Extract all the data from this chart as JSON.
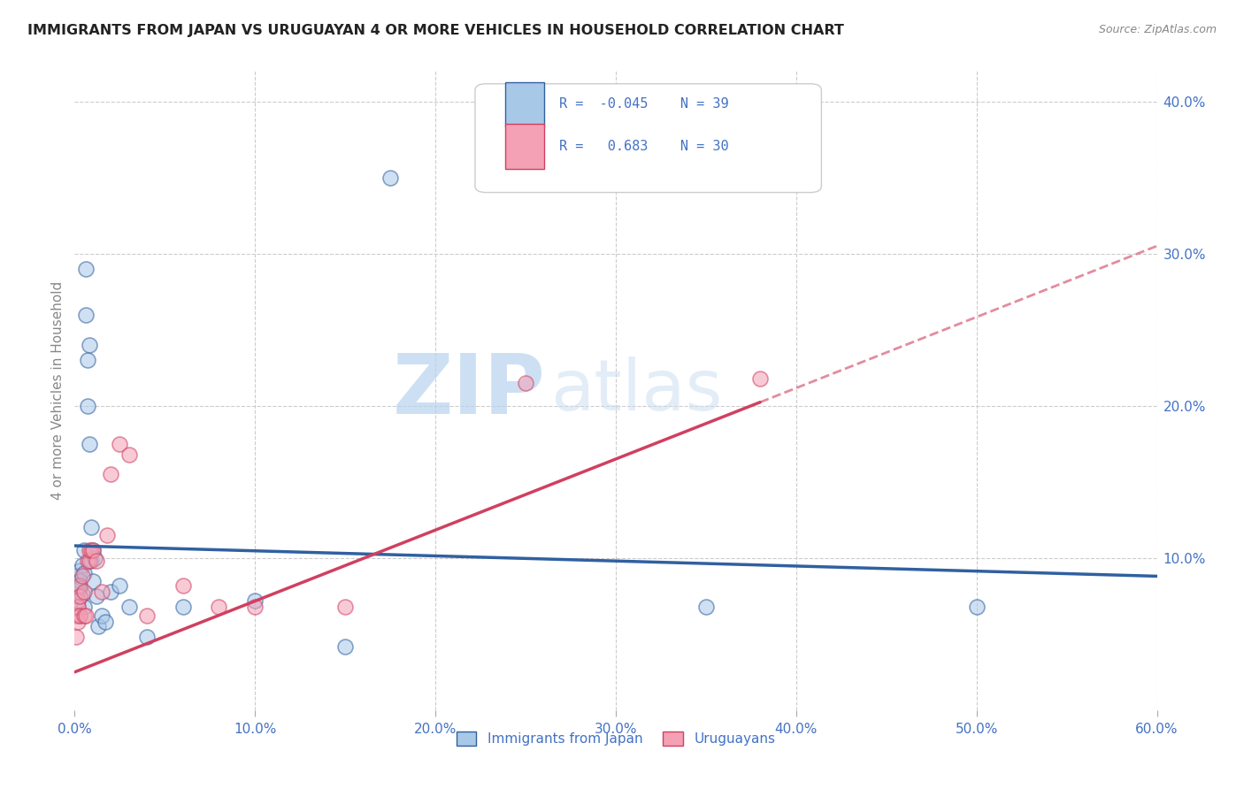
{
  "title": "IMMIGRANTS FROM JAPAN VS URUGUAYAN 4 OR MORE VEHICLES IN HOUSEHOLD CORRELATION CHART",
  "source": "Source: ZipAtlas.com",
  "ylabel": "4 or more Vehicles in Household",
  "xlim": [
    0.0,
    0.6
  ],
  "ylim": [
    0.0,
    0.42
  ],
  "xticks": [
    0.0,
    0.1,
    0.2,
    0.3,
    0.4,
    0.5,
    0.6
  ],
  "yticks": [
    0.1,
    0.2,
    0.3,
    0.4
  ],
  "xtick_labels": [
    "0.0%",
    "10.0%",
    "20.0%",
    "30.0%",
    "40.0%",
    "50.0%",
    "60.0%"
  ],
  "ytick_labels": [
    "10.0%",
    "20.0%",
    "30.0%",
    "40.0%"
  ],
  "legend_label1": "Immigrants from Japan",
  "legend_label2": "Uruguayans",
  "R1": -0.045,
  "N1": 39,
  "R2": 0.683,
  "N2": 30,
  "color_blue": "#a8c8e8",
  "color_pink": "#f4a0b5",
  "color_blue_line": "#3060a0",
  "color_pink_line": "#d04060",
  "color_text": "#4472c4",
  "watermark_zip": "ZIP",
  "watermark_atlas": "atlas",
  "japan_line_x0": 0.0,
  "japan_line_y0": 0.108,
  "japan_line_x1": 0.6,
  "japan_line_y1": 0.088,
  "uruguay_line_x0": 0.0,
  "uruguay_line_y0": 0.025,
  "uruguay_line_x1": 0.6,
  "uruguay_line_y1": 0.305,
  "japan_x": [
    0.001,
    0.001,
    0.002,
    0.002,
    0.002,
    0.003,
    0.003,
    0.003,
    0.003,
    0.004,
    0.004,
    0.005,
    0.005,
    0.005,
    0.006,
    0.006,
    0.007,
    0.007,
    0.008,
    0.008,
    0.009,
    0.009,
    0.01,
    0.01,
    0.011,
    0.012,
    0.013,
    0.015,
    0.017,
    0.02,
    0.025,
    0.03,
    0.04,
    0.06,
    0.1,
    0.15,
    0.175,
    0.35,
    0.5
  ],
  "japan_y": [
    0.088,
    0.075,
    0.082,
    0.078,
    0.068,
    0.092,
    0.085,
    0.08,
    0.062,
    0.095,
    0.076,
    0.09,
    0.068,
    0.105,
    0.29,
    0.26,
    0.23,
    0.2,
    0.24,
    0.175,
    0.12,
    0.098,
    0.105,
    0.085,
    0.1,
    0.075,
    0.055,
    0.062,
    0.058,
    0.078,
    0.082,
    0.068,
    0.048,
    0.068,
    0.072,
    0.042,
    0.35,
    0.068,
    0.068
  ],
  "uruguay_x": [
    0.001,
    0.001,
    0.002,
    0.002,
    0.002,
    0.003,
    0.003,
    0.003,
    0.004,
    0.005,
    0.005,
    0.006,
    0.007,
    0.008,
    0.008,
    0.009,
    0.01,
    0.012,
    0.015,
    0.018,
    0.02,
    0.025,
    0.03,
    0.04,
    0.06,
    0.08,
    0.1,
    0.15,
    0.25,
    0.38
  ],
  "uruguay_y": [
    0.048,
    0.062,
    0.058,
    0.072,
    0.068,
    0.082,
    0.075,
    0.062,
    0.088,
    0.078,
    0.062,
    0.062,
    0.098,
    0.098,
    0.105,
    0.105,
    0.105,
    0.098,
    0.078,
    0.115,
    0.155,
    0.175,
    0.168,
    0.062,
    0.082,
    0.068,
    0.068,
    0.068,
    0.215,
    0.218
  ]
}
